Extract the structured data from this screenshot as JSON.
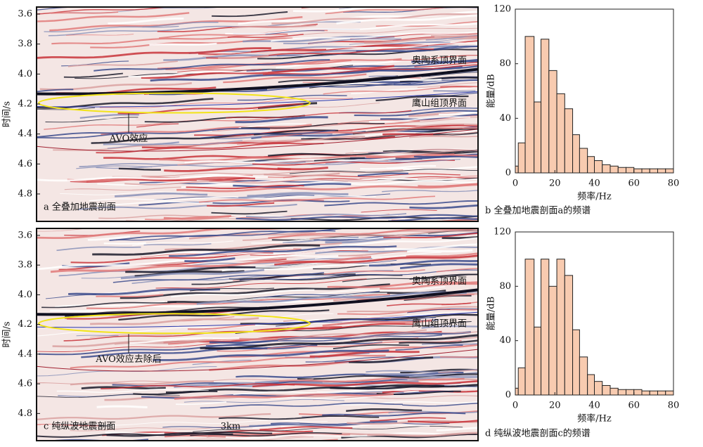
{
  "chart_data": [
    {
      "type": "seismic",
      "ylabel": "时间/s",
      "ylim": [
        3.553,
        4.983
      ],
      "yticks": [
        3.6,
        3.8,
        {
          "value": 4,
          "label": "4.0"
        },
        4.2,
        4.4,
        4.6,
        4.8
      ],
      "annotations": [
        "奥陶系顶界面",
        "鹰山组顶界面",
        "AVO效应"
      ],
      "caption": "a 全叠加地震剖面"
    },
    {
      "type": "histogram",
      "xlabel": "频率/Hz",
      "ylabel": "能量/dB",
      "color": "#f8cbb0",
      "bins": [
        0,
        1.5,
        5,
        9.5,
        13,
        17,
        21,
        25,
        29,
        32.5,
        36.5,
        40,
        44,
        48,
        52,
        56,
        60,
        64,
        68,
        72,
        76,
        80
      ],
      "values": [
        5,
        22,
        100,
        52,
        98,
        75,
        58,
        47,
        28,
        18,
        12,
        9,
        6,
        5,
        4,
        4,
        3,
        3,
        3,
        3,
        3
      ],
      "xlim": [
        0,
        80
      ],
      "xticks": [
        0,
        20,
        40,
        60,
        80
      ],
      "ylim": [
        0,
        120
      ],
      "yticks": [
        0,
        40,
        80,
        120
      ],
      "caption": "b 全叠加地震剖面a的频谱"
    },
    {
      "type": "seismic",
      "ylabel": "时间/s",
      "ylim": [
        3.553,
        4.983
      ],
      "yticks": [
        3.6,
        3.8,
        {
          "value": 4,
          "label": "4.0"
        },
        4.2,
        4.4,
        4.6,
        4.8
      ],
      "annotations": [
        "奥陶系顶界面",
        "鹰山组顶界面",
        "AVO效应去除后",
        "3km"
      ],
      "caption": "c 纯纵波地震剖面"
    },
    {
      "type": "histogram",
      "xlabel": "频率/Hz",
      "ylabel": "能量/dB",
      "color": "#f8cbb0",
      "bins": [
        0,
        1.5,
        5,
        9.5,
        13,
        17,
        21,
        25,
        29,
        32.5,
        36.5,
        40,
        44,
        48,
        52,
        56,
        60,
        64,
        68,
        72,
        76,
        80
      ],
      "values": [
        5,
        20,
        100,
        50,
        100,
        80,
        100,
        88,
        48,
        28,
        15,
        10,
        7,
        5,
        4,
        4,
        4,
        3,
        3,
        3,
        3
      ],
      "xlim": [
        0,
        80
      ],
      "xticks": [
        0,
        20,
        40,
        60,
        80
      ],
      "ylim": [
        0,
        120
      ],
      "yticks": [
        0,
        40,
        80,
        120
      ],
      "caption": "d 纯纵波地震剖面c的频谱"
    }
  ]
}
